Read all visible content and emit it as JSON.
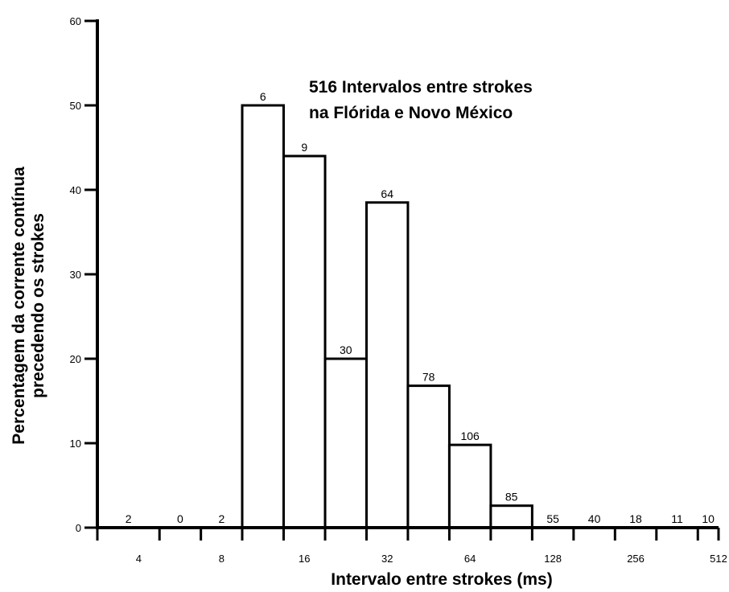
{
  "chart_data": {
    "type": "bar",
    "title_lines": [
      "516 Intervalos entre strokes",
      "na Flórida e Novo México"
    ],
    "xlabel": "Intervalo entre strokes (ms)",
    "ylabel_lines": [
      "Percentagem da corrente contínua",
      "precedendo os strokes"
    ],
    "x_scale": "log2",
    "x_tick_labels": [
      {
        "value": 4,
        "label": "4"
      },
      {
        "value": 8,
        "label": "8"
      },
      {
        "value": 16,
        "label": "16"
      },
      {
        "value": 32,
        "label": "32"
      },
      {
        "value": 64,
        "label": "64"
      },
      {
        "value": 128,
        "label": "128"
      },
      {
        "value": 256,
        "label": "256"
      },
      {
        "value": 512,
        "label": "512"
      }
    ],
    "y_ticks": [
      0,
      10,
      20,
      30,
      40,
      50,
      60
    ],
    "ylim": [
      0,
      60
    ],
    "xlim": [
      2.83,
      512
    ],
    "bins": [
      {
        "x_start": 2.83,
        "x_end": 4.76,
        "value": 0,
        "count": "2"
      },
      {
        "x_start": 4.76,
        "x_end": 6.73,
        "value": 0,
        "count": "0"
      },
      {
        "x_start": 6.73,
        "x_end": 9.51,
        "value": 0,
        "count": "2"
      },
      {
        "x_start": 9.51,
        "x_end": 13.45,
        "value": 50,
        "count": "6"
      },
      {
        "x_start": 13.45,
        "x_end": 19.03,
        "value": 44,
        "count": "9"
      },
      {
        "x_start": 19.03,
        "x_end": 26.91,
        "value": 20,
        "count": "30"
      },
      {
        "x_start": 26.91,
        "x_end": 38.05,
        "value": 38.5,
        "count": "64"
      },
      {
        "x_start": 38.05,
        "x_end": 53.82,
        "value": 16.8,
        "count": "78"
      },
      {
        "x_start": 53.82,
        "x_end": 76.11,
        "value": 9.8,
        "count": "106"
      },
      {
        "x_start": 76.11,
        "x_end": 107.63,
        "value": 2.6,
        "count": "85"
      },
      {
        "x_start": 107.63,
        "x_end": 152.22,
        "value": 0,
        "count": "55"
      },
      {
        "x_start": 152.22,
        "x_end": 215.27,
        "value": 0,
        "count": "40"
      },
      {
        "x_start": 215.27,
        "x_end": 304.44,
        "value": 0,
        "count": "18"
      },
      {
        "x_start": 304.44,
        "x_end": 430.54,
        "value": 0,
        "count": "11"
      },
      {
        "x_start": 430.54,
        "x_end": 512,
        "value": 0,
        "count": "10"
      }
    ],
    "grid": false,
    "legend": "none"
  }
}
